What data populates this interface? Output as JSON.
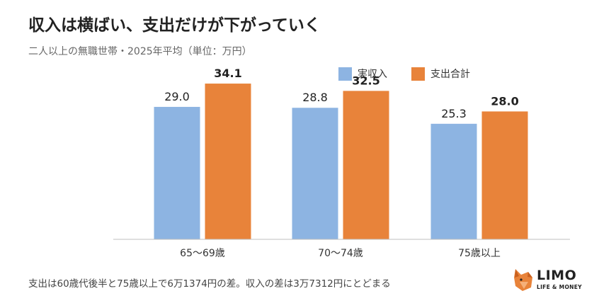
{
  "title": "収入は横ばい、支出だけが下がっていく",
  "subtitle": "二人以上の無職世帯・2025年平均（単位：万円）",
  "footnote": "支出は60歳代後半と75歳以上で6万1374円の差。収入の差は3万7312円にとどまる",
  "logo": {
    "main": "LIMO",
    "sub": "LIFE & MONEY",
    "icon": "limo-fox-logo"
  },
  "colors": {
    "income": "#8DB4E2",
    "expense": "#E8833A",
    "axis": "#BFBFBF"
  },
  "chart_data": {
    "type": "bar",
    "title": "収入は横ばい、支出だけが下がっていく",
    "categories": [
      "65〜69歳",
      "70〜74歳",
      "75歳以上"
    ],
    "series": [
      {
        "name": "実収入",
        "values": [
          29.0,
          28.8,
          25.3
        ],
        "labels": [
          "29.0",
          "28.8",
          "25.3"
        ]
      },
      {
        "name": "支出合計",
        "values": [
          34.1,
          32.5,
          28.0
        ],
        "labels": [
          "34.1",
          "32.5",
          "28.0"
        ]
      }
    ],
    "ylim": [
      0,
      40
    ],
    "grid": false,
    "legend": "top-right"
  }
}
